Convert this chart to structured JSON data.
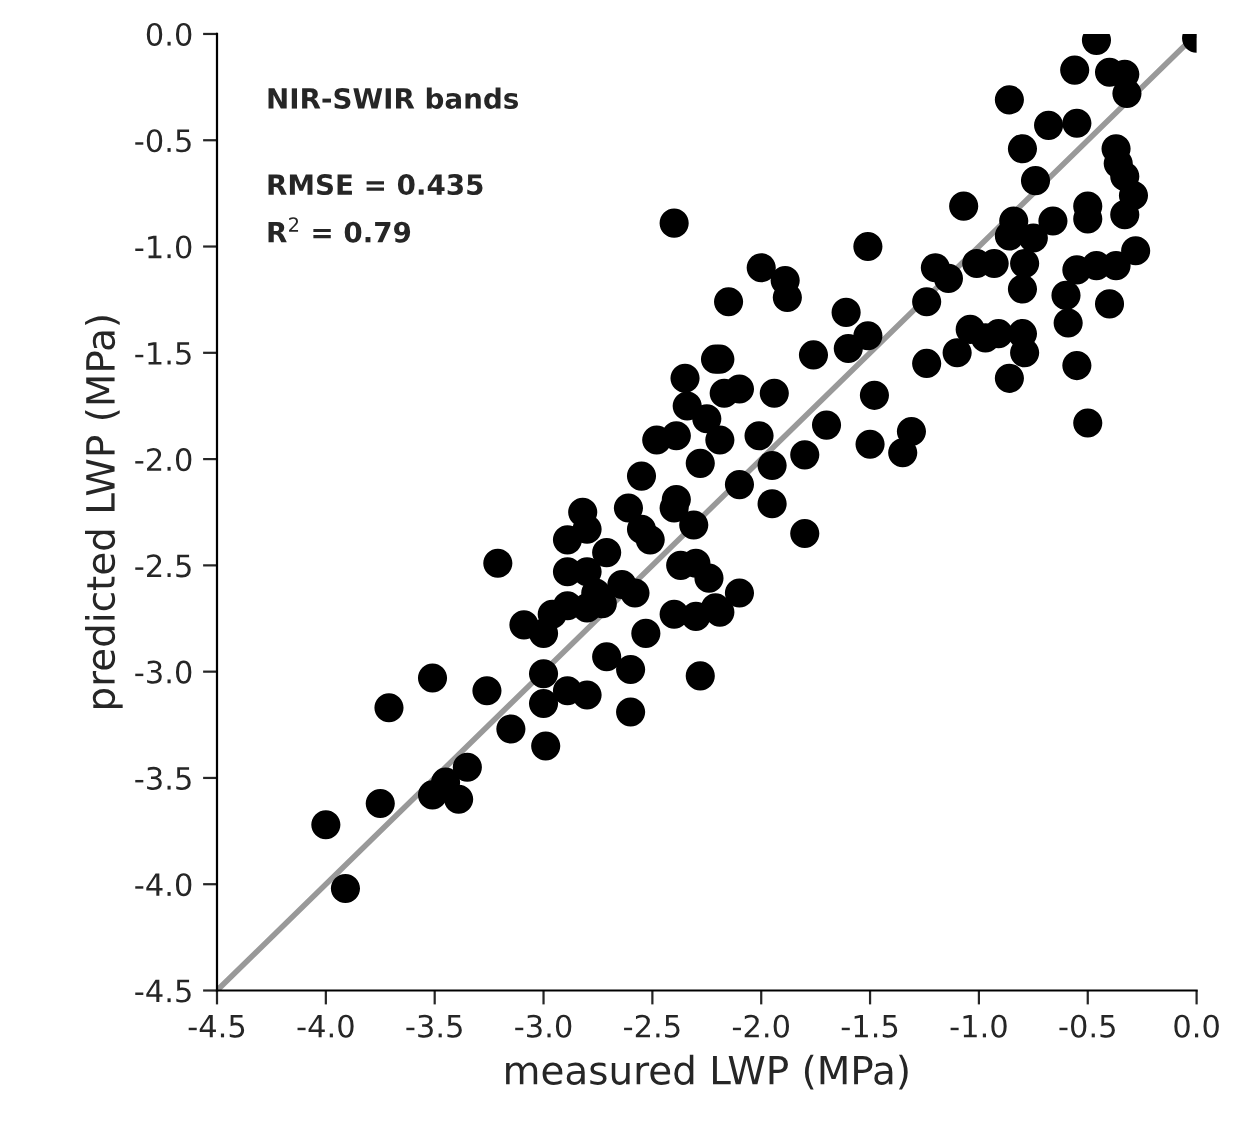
{
  "chart_data": {
    "type": "scatter",
    "xlabel": "measured LWP (MPa)",
    "ylabel": "predicted LWP (MPa)",
    "annotations": [
      "NIR-SWIR bands",
      "RMSE = 0.435",
      "R$^{2}$ = 0.79"
    ],
    "xlim": [
      -4.5,
      0
    ],
    "ylim": [
      -4.5,
      0
    ],
    "xticks": [
      -4.5,
      {
        "value": -4,
        "label": "-4.0"
      },
      -3.5,
      {
        "value": -3,
        "label": "-3.0"
      },
      -2.5,
      {
        "value": -2,
        "label": "-2.0"
      },
      -1.5,
      {
        "value": -1,
        "label": "-1.0"
      },
      -0.5,
      {
        "value": 0,
        "label": "0.0"
      }
    ],
    "yticks": [
      -4.5,
      {
        "value": -4,
        "label": "-4.0"
      },
      -3.5,
      {
        "value": -3,
        "label": "-3.0"
      },
      -2.5,
      {
        "value": -2,
        "label": "-2.0"
      },
      -1.5,
      {
        "value": -1,
        "label": "-1.0"
      },
      -0.5,
      {
        "value": 0,
        "label": "0.0"
      }
    ],
    "grid": false,
    "legend": false,
    "marker": "circle",
    "series": [
      {
        "type": "line",
        "color": "#999999",
        "marker": "none",
        "x": [
          -4.5,
          0
        ],
        "values": [
          -4.5,
          0
        ]
      },
      {
        "color": "#000000",
        "x": [
          0.0,
          -0.46,
          -0.56,
          -0.4,
          -0.33,
          -0.32,
          -0.86,
          -0.68,
          -0.55,
          -0.8,
          -0.37,
          -0.36,
          -0.74,
          -0.33,
          -0.29,
          -1.07,
          -0.33,
          -0.5,
          -0.66,
          -0.84,
          -1.51,
          -2.4,
          -2.0,
          -1.89,
          -1.88,
          -2.15,
          -1.61,
          -1.51,
          -1.76,
          -1.6,
          -2.19,
          -1.24,
          -1.2,
          -1.14,
          -1.01,
          -0.93,
          -0.86,
          -0.75,
          -0.79,
          -0.8,
          -0.5,
          -0.55,
          -0.46,
          -0.37,
          -0.28,
          -0.6,
          -0.59,
          -0.4,
          -1.04,
          -0.97,
          -0.91,
          -0.8,
          -0.79,
          -1.1,
          -1.24,
          -0.55,
          -0.86,
          -0.5,
          -1.48,
          -1.94,
          -2.17,
          -2.1,
          -1.7,
          -1.31,
          -1.35,
          -1.5,
          -1.8,
          -2.01,
          -2.19,
          -1.95,
          -2.1,
          -1.95,
          -2.35,
          -2.21,
          -2.34,
          -2.25,
          -2.48,
          -2.39,
          -2.28,
          -2.55,
          -2.39,
          -2.82,
          -2.61,
          -2.4,
          -2.89,
          -2.8,
          -2.71,
          -2.55,
          -2.51,
          -2.31,
          -3.21,
          -2.89,
          -2.8,
          -2.64,
          -2.58,
          -2.76,
          -2.37,
          -2.3,
          -2.24,
          -3.09,
          -3.0,
          -2.96,
          -2.89,
          -2.8,
          -2.73,
          -2.4,
          -2.3,
          -2.21,
          -2.53,
          -2.71,
          -2.6,
          -2.28,
          -3.0,
          -3.51,
          -3.26,
          -2.89,
          -2.8,
          -2.6,
          -3.0,
          -3.15,
          -2.99,
          -3.71,
          -3.35,
          -3.45,
          -3.51,
          -3.39,
          -3.75,
          -4.0,
          -3.91,
          -1.8,
          -2.1,
          -2.19
        ],
        "values": [
          -0.02,
          -0.03,
          -0.17,
          -0.18,
          -0.19,
          -0.28,
          -0.31,
          -0.43,
          -0.42,
          -0.54,
          -0.54,
          -0.61,
          -0.69,
          -0.67,
          -0.76,
          -0.81,
          -0.85,
          -0.87,
          -0.88,
          -0.88,
          -1.0,
          -0.89,
          -1.1,
          -1.16,
          -1.24,
          -1.26,
          -1.31,
          -1.42,
          -1.51,
          -1.48,
          -1.53,
          -1.26,
          -1.1,
          -1.15,
          -1.08,
          -1.08,
          -0.95,
          -0.96,
          -1.08,
          -1.2,
          -0.81,
          -1.11,
          -1.09,
          -1.09,
          -1.02,
          -1.23,
          -1.36,
          -1.27,
          -1.39,
          -1.43,
          -1.41,
          -1.41,
          -1.5,
          -1.5,
          -1.55,
          -1.56,
          -1.62,
          -1.83,
          -1.7,
          -1.69,
          -1.69,
          -1.67,
          -1.84,
          -1.87,
          -1.97,
          -1.93,
          -1.98,
          -1.89,
          -1.91,
          -2.03,
          -2.12,
          -2.21,
          -1.62,
          -1.53,
          -1.75,
          -1.81,
          -1.91,
          -1.89,
          -2.02,
          -2.08,
          -2.19,
          -2.25,
          -2.23,
          -2.23,
          -2.38,
          -2.33,
          -2.44,
          -2.33,
          -2.38,
          -2.31,
          -2.49,
          -2.53,
          -2.53,
          -2.59,
          -2.63,
          -2.63,
          -2.5,
          -2.49,
          -2.56,
          -2.78,
          -2.82,
          -2.73,
          -2.69,
          -2.7,
          -2.68,
          -2.73,
          -2.74,
          -2.7,
          -2.82,
          -2.93,
          -2.99,
          -3.02,
          -3.01,
          -3.03,
          -3.09,
          -3.09,
          -3.11,
          -3.19,
          -3.15,
          -3.27,
          -3.35,
          -3.17,
          -3.45,
          -3.52,
          -3.58,
          -3.6,
          -3.62,
          -3.72,
          -4.02,
          -2.35,
          -2.63,
          -2.72
        ]
      }
    ]
  }
}
